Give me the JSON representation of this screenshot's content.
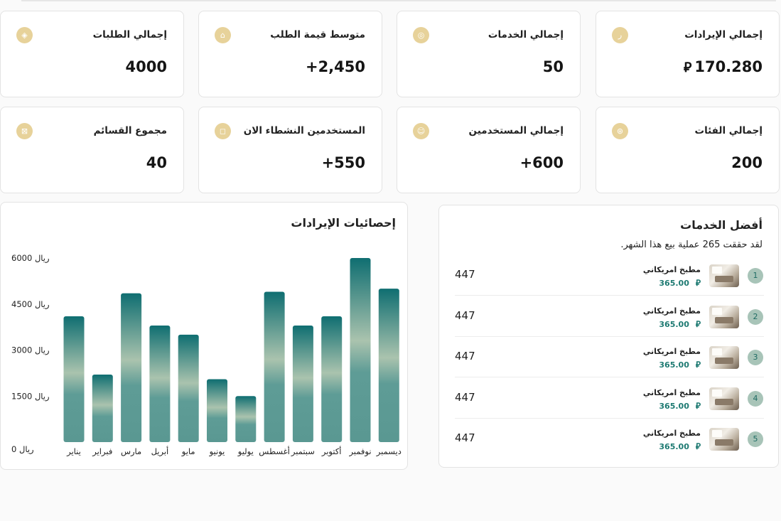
{
  "currency_symbol": "⃁",
  "stats": [
    {
      "label": "إجمالي الإيرادات",
      "value": "170.280",
      "icon": "riyal-icon",
      "show_currency": true
    },
    {
      "label": "إجمالي الخدمات",
      "value": "50",
      "icon": "services-icon"
    },
    {
      "label": "متوسط قيمة الطلب",
      "value": "+2,450",
      "icon": "store-icon"
    },
    {
      "label": "إجمالي الطلبات",
      "value": "4000",
      "icon": "box-icon"
    },
    {
      "label": "إجمالي الفئات",
      "value": "200",
      "icon": "category-icon"
    },
    {
      "label": "إجمالي المستخدمين",
      "value": "+600",
      "icon": "users-icon"
    },
    {
      "label": "المستخدمين النشطاء الان",
      "value": "+550",
      "icon": "active-user-icon"
    },
    {
      "label": "مجموع القسائم",
      "value": "40",
      "icon": "coupon-icon"
    }
  ],
  "revenue_chart": {
    "title": "إحصائيات الإيرادات"
  },
  "chart_data": {
    "type": "bar",
    "title": "إحصائيات الإيرادات",
    "categories": [
      "يناير",
      "فبراير",
      "مارس",
      "أبريل",
      "مايو",
      "يونيو",
      "يوليو",
      "أغسطس",
      "سبتمبر",
      "أكتوبر",
      "نوفمبر",
      "ديسمبر"
    ],
    "values": [
      4100,
      2200,
      4850,
      3800,
      3500,
      2050,
      1500,
      4900,
      3800,
      4100,
      6000,
      5000
    ],
    "ylim": [
      0,
      6000
    ],
    "yticks": [
      0,
      1500,
      3000,
      4500,
      6000
    ],
    "ytick_labels": [
      "0 ريال",
      "1500 ريال",
      "3000 ريال",
      "4500 ريال",
      "6000 ريال"
    ],
    "colors": {
      "top": "#0f6e71",
      "mid": "#a9c2ad",
      "bottom": "#5c9b95"
    }
  },
  "top_services": {
    "title": "أفضل الخدمات",
    "subtitle": "لقد حققت 265 عملية بيع هذا الشهر.",
    "items": [
      {
        "rank": "1",
        "name": "مطبخ امريكاني",
        "price": "365.00",
        "count": "447"
      },
      {
        "rank": "2",
        "name": "مطبخ امريكاني",
        "price": "365.00",
        "count": "447"
      },
      {
        "rank": "3",
        "name": "مطبخ امريكاني",
        "price": "365.00",
        "count": "447"
      },
      {
        "rank": "4",
        "name": "مطبخ امريكاني",
        "price": "365.00",
        "count": "447"
      },
      {
        "rank": "5",
        "name": "مطبخ امريكاني",
        "price": "365.00",
        "count": "447"
      }
    ]
  }
}
